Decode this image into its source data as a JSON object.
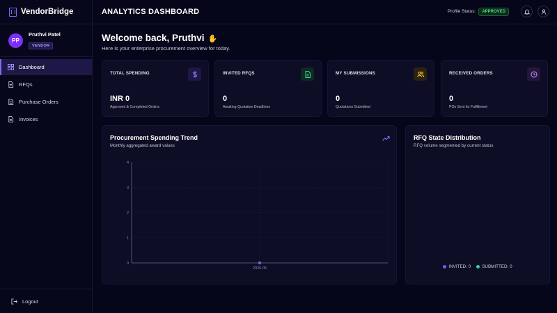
{
  "brand": {
    "name": "VendorBridge"
  },
  "user": {
    "initials": "PP",
    "name": "Pruthvi Patel",
    "role": "VENDOR"
  },
  "nav": [
    {
      "label": "Dashboard",
      "icon": "dashboard-icon",
      "active": true
    },
    {
      "label": "RFQs",
      "icon": "document-icon",
      "active": false
    },
    {
      "label": "Purchase Orders",
      "icon": "document-icon",
      "active": false
    },
    {
      "label": "Invoices",
      "icon": "document-icon",
      "active": false
    }
  ],
  "logout_label": "Logout",
  "header": {
    "title": "ANALYTICS DASHBOARD",
    "status_label": "Profile Status:",
    "status_value": "APPROVED",
    "status_color": "#4ade80"
  },
  "welcome": {
    "title": "Welcome back, Pruthvi",
    "subtitle": "Here is your enterprise procurement overview for today."
  },
  "stats": [
    {
      "label": "TOTAL SPENDING",
      "value": "INR 0",
      "sub": "Approved & Completed Orders",
      "icon": "dollar-icon",
      "color": "#8b7bff"
    },
    {
      "label": "INVITED RFQS",
      "value": "0",
      "sub": "Awaiting Quotation Deadlines",
      "icon": "file-icon",
      "color": "#34d399"
    },
    {
      "label": "MY SUBMISSIONS",
      "value": "0",
      "sub": "Quotations Submitted",
      "icon": "users-icon",
      "color": "#fbbf24"
    },
    {
      "label": "RECEIVED ORDERS",
      "value": "0",
      "sub": "POs Sent for Fulfillment",
      "icon": "clock-icon",
      "color": "#c084fc"
    }
  ],
  "trend": {
    "title": "Procurement Spending Trend",
    "subtitle": "Monthly aggregated award values"
  },
  "distribution": {
    "title": "RFQ State Distribution",
    "subtitle": "RFQ volume segmented by current status",
    "legend": [
      {
        "label": "INVITED: 0",
        "color": "#6366f1"
      },
      {
        "label": "SUBMITTED: 0",
        "color": "#34d399"
      }
    ]
  },
  "chart_data": {
    "type": "line",
    "x": [
      "2026-05"
    ],
    "series": [
      {
        "values": [
          0
        ]
      }
    ],
    "yticks": [
      0,
      1,
      2,
      3,
      4
    ],
    "ylim": [
      0,
      4
    ],
    "grid": true,
    "color": "#6366f1"
  }
}
